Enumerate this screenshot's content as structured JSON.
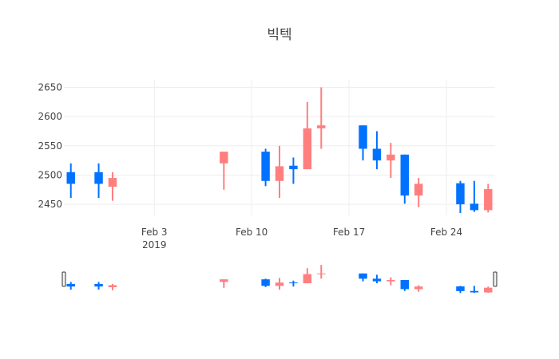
{
  "chart_data": {
    "type": "candlestick",
    "title": "빅텍",
    "xlabel": "",
    "ylabel": "",
    "ylim": [
      2431,
      2663
    ],
    "y_ticks": [
      2450,
      2500,
      2550,
      2600,
      2650
    ],
    "x_range": [
      "2019-01-27T12:00",
      "2019-02-27T12:00"
    ],
    "x_ticks": [
      {
        "date": "2019-02-03",
        "label": "Feb 3",
        "sub": "2019"
      },
      {
        "date": "2019-02-10",
        "label": "Feb 10",
        "sub": ""
      },
      {
        "date": "2019-02-17",
        "label": "Feb 17",
        "sub": ""
      },
      {
        "date": "2019-02-24",
        "label": "Feb 24",
        "sub": ""
      }
    ],
    "grid": true,
    "range_slider": true,
    "colors": {
      "increasing": "#0072ff",
      "decreasing": "#ff7f7f"
    },
    "candles": [
      {
        "date": "2019-01-28",
        "open": 2485,
        "high": 2520,
        "low": 2461,
        "close": 2505
      },
      {
        "date": "2019-01-30",
        "open": 2485,
        "high": 2520,
        "low": 2461,
        "close": 2505
      },
      {
        "date": "2019-01-31",
        "open": 2495,
        "high": 2505,
        "low": 2456,
        "close": 2480
      },
      {
        "date": "2019-02-08",
        "open": 2540,
        "high": 2540,
        "low": 2475,
        "close": 2520
      },
      {
        "date": "2019-02-11",
        "open": 2490,
        "high": 2545,
        "low": 2481,
        "close": 2540
      },
      {
        "date": "2019-02-12",
        "open": 2515,
        "high": 2550,
        "low": 2461,
        "close": 2490
      },
      {
        "date": "2019-02-13",
        "open": 2510,
        "high": 2530,
        "low": 2485,
        "close": 2516
      },
      {
        "date": "2019-02-14",
        "open": 2580,
        "high": 2625,
        "low": 2510,
        "close": 2510
      },
      {
        "date": "2019-02-15",
        "open": 2585,
        "high": 2650,
        "low": 2545,
        "close": 2580
      },
      {
        "date": "2019-02-18",
        "open": 2545,
        "high": 2585,
        "low": 2525,
        "close": 2585
      },
      {
        "date": "2019-02-19",
        "open": 2525,
        "high": 2575,
        "low": 2510,
        "close": 2545
      },
      {
        "date": "2019-02-20",
        "open": 2535,
        "high": 2555,
        "low": 2495,
        "close": 2525
      },
      {
        "date": "2019-02-21",
        "open": 2465,
        "high": 2535,
        "low": 2451,
        "close": 2535
      },
      {
        "date": "2019-02-22",
        "open": 2485,
        "high": 2495,
        "low": 2445,
        "close": 2465
      },
      {
        "date": "2019-02-25",
        "open": 2450,
        "high": 2490,
        "low": 2435,
        "close": 2486
      },
      {
        "date": "2019-02-26",
        "open": 2440,
        "high": 2490,
        "low": 2437,
        "close": 2451
      },
      {
        "date": "2019-02-27",
        "open": 2476,
        "high": 2485,
        "low": 2436,
        "close": 2440
      }
    ]
  }
}
